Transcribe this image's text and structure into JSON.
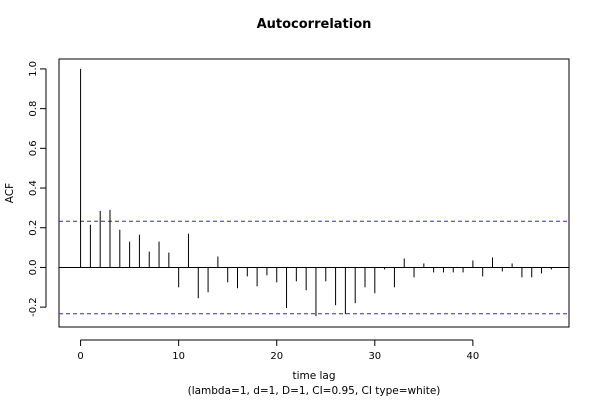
{
  "chart_data": {
    "type": "bar",
    "title": "Autocorrelation",
    "xlabel": "time lag",
    "subtitle": "(lambda=1, d=1, D=1, CI=0.95, CI type=white)",
    "ylabel": "ACF",
    "xlim": [
      -2.2,
      49.8
    ],
    "ylim": [
      -0.3,
      1.05
    ],
    "x_ticks": [
      0,
      10,
      20,
      30,
      40
    ],
    "y_ticks": [
      -0.2,
      0.0,
      0.2,
      0.4,
      0.6,
      0.8,
      1.0
    ],
    "y_tick_labels": [
      "-0.2",
      "0.0",
      "0.2",
      "0.4",
      "0.6",
      "0.8",
      "1.0"
    ],
    "confidence_limit": 0.233,
    "confidence_line_color": "#2b2bbd",
    "zero_line": true,
    "grid": false,
    "lags": [
      0,
      1,
      2,
      3,
      4,
      5,
      6,
      7,
      8,
      9,
      10,
      11,
      12,
      13,
      14,
      15,
      16,
      17,
      18,
      19,
      20,
      21,
      22,
      23,
      24,
      25,
      26,
      27,
      28,
      29,
      30,
      31,
      32,
      33,
      34,
      35,
      36,
      37,
      38,
      39,
      40,
      41,
      42,
      43,
      44,
      45,
      46,
      47,
      48
    ],
    "values": [
      1.0,
      0.215,
      0.285,
      0.29,
      0.19,
      0.13,
      0.165,
      0.08,
      0.13,
      0.075,
      -0.1,
      0.17,
      -0.155,
      -0.125,
      0.055,
      -0.075,
      -0.105,
      -0.045,
      -0.095,
      -0.04,
      -0.075,
      -0.205,
      -0.07,
      -0.115,
      -0.245,
      -0.07,
      -0.19,
      -0.235,
      -0.18,
      -0.1,
      -0.13,
      -0.01,
      -0.1,
      0.045,
      -0.05,
      0.02,
      -0.025,
      -0.025,
      -0.025,
      -0.025,
      0.035,
      -0.045,
      0.05,
      -0.02,
      0.02,
      -0.05,
      -0.05,
      -0.03,
      -0.01
    ]
  }
}
